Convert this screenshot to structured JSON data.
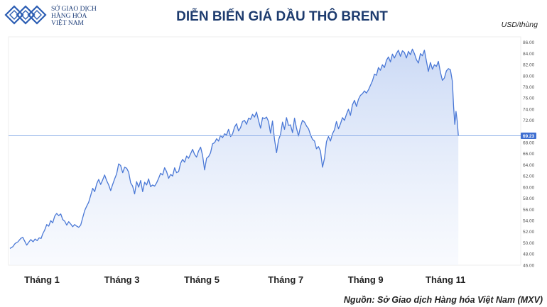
{
  "logo": {
    "line1": "SỞ GIAO DỊCH",
    "line2": "HÀNG HÓA",
    "line3": "VIỆT NAM"
  },
  "header": {
    "title": "DIỄN BIẾN GIÁ DẦU THÔ BRENT",
    "unit": "USD/thùng"
  },
  "source": "Nguồn: Sở Giao dịch Hàng hóa Việt Nam (MXV)",
  "colors": {
    "line": "#4a78d6",
    "fill_top": "#c9d8f5",
    "fill_bottom": "#f4f7fd",
    "title": "#1d3b6e",
    "last_label_bg": "#3f6fd1",
    "last_line": "#8fb0e8"
  },
  "chart_data": {
    "type": "area",
    "title": "DIỄN BIẾN GIÁ DẦU THÔ BRENT",
    "ylabel": "USD/thùng",
    "ylim": [
      46,
      87
    ],
    "grid": false,
    "yticks": [
      46,
      48,
      50,
      52,
      54,
      56,
      58,
      60,
      62,
      64,
      66,
      68,
      70,
      72,
      74,
      76,
      78,
      80,
      82,
      84,
      86
    ],
    "ytick_labels": [
      "46.00",
      "48.00",
      "50.00",
      "52.00",
      "54.00",
      "56.00",
      "58.00",
      "60.00",
      "62.00",
      "64.00",
      "66.00",
      "68.00",
      "70.00",
      "72.00",
      "74.00",
      "76.00",
      "78.00",
      "80.00",
      "82.00",
      "84.00",
      "86.00"
    ],
    "x_range": [
      0,
      12.3
    ],
    "xticks": [
      {
        "x": 0.8,
        "label": "Tháng 1"
      },
      {
        "x": 2.8,
        "label": "Tháng 3"
      },
      {
        "x": 4.8,
        "label": "Tháng 5"
      },
      {
        "x": 6.9,
        "label": "Tháng 7"
      },
      {
        "x": 8.9,
        "label": "Tháng 9"
      },
      {
        "x": 10.9,
        "label": "Tháng 11"
      }
    ],
    "last_value": 69.23,
    "last_value_label": "69.23",
    "series": [
      {
        "values": [
          [
            0.0,
            49.0
          ],
          [
            0.07,
            49.3
          ],
          [
            0.13,
            49.9
          ],
          [
            0.2,
            50.2
          ],
          [
            0.27,
            50.8
          ],
          [
            0.32,
            51.0
          ],
          [
            0.37,
            50.3
          ],
          [
            0.42,
            49.6
          ],
          [
            0.47,
            50.1
          ],
          [
            0.52,
            50.6
          ],
          [
            0.58,
            50.2
          ],
          [
            0.63,
            50.7
          ],
          [
            0.68,
            50.4
          ],
          [
            0.73,
            50.9
          ],
          [
            0.78,
            50.8
          ],
          [
            0.82,
            51.6
          ],
          [
            0.87,
            52.3
          ],
          [
            0.92,
            53.3
          ],
          [
            0.97,
            53.0
          ],
          [
            1.02,
            54.0
          ],
          [
            1.07,
            53.6
          ],
          [
            1.12,
            54.8
          ],
          [
            1.17,
            55.3
          ],
          [
            1.22,
            54.9
          ],
          [
            1.27,
            55.2
          ],
          [
            1.32,
            54.2
          ],
          [
            1.37,
            53.9
          ],
          [
            1.42,
            53.2
          ],
          [
            1.47,
            53.8
          ],
          [
            1.52,
            53.4
          ],
          [
            1.57,
            52.9
          ],
          [
            1.62,
            53.3
          ],
          [
            1.67,
            53.0
          ],
          [
            1.72,
            52.8
          ],
          [
            1.77,
            53.2
          ],
          [
            1.82,
            54.5
          ],
          [
            1.87,
            55.8
          ],
          [
            1.92,
            56.6
          ],
          [
            1.97,
            57.3
          ],
          [
            2.02,
            58.5
          ],
          [
            2.07,
            59.8
          ],
          [
            2.12,
            59.2
          ],
          [
            2.17,
            60.6
          ],
          [
            2.22,
            61.4
          ],
          [
            2.27,
            60.5
          ],
          [
            2.32,
            61.3
          ],
          [
            2.37,
            62.2
          ],
          [
            2.42,
            61.2
          ],
          [
            2.47,
            60.4
          ],
          [
            2.52,
            59.4
          ],
          [
            2.57,
            60.5
          ],
          [
            2.62,
            61.5
          ],
          [
            2.67,
            62.4
          ],
          [
            2.72,
            64.2
          ],
          [
            2.77,
            63.9
          ],
          [
            2.82,
            62.6
          ],
          [
            2.87,
            63.6
          ],
          [
            2.92,
            63.4
          ],
          [
            2.97,
            62.7
          ],
          [
            3.02,
            60.8
          ],
          [
            3.07,
            60.2
          ],
          [
            3.12,
            58.8
          ],
          [
            3.17,
            61.0
          ],
          [
            3.22,
            60.0
          ],
          [
            3.27,
            61.2
          ],
          [
            3.32,
            59.2
          ],
          [
            3.37,
            60.9
          ],
          [
            3.42,
            60.4
          ],
          [
            3.47,
            61.5
          ],
          [
            3.52,
            60.1
          ],
          [
            3.57,
            60.4
          ],
          [
            3.62,
            60.2
          ],
          [
            3.67,
            60.8
          ],
          [
            3.72,
            61.6
          ],
          [
            3.77,
            62.5
          ],
          [
            3.82,
            62.2
          ],
          [
            3.87,
            63.5
          ],
          [
            3.92,
            62.8
          ],
          [
            3.97,
            61.6
          ],
          [
            4.02,
            62.3
          ],
          [
            4.07,
            62.0
          ],
          [
            4.12,
            63.5
          ],
          [
            4.17,
            62.6
          ],
          [
            4.22,
            62.8
          ],
          [
            4.27,
            64.3
          ],
          [
            4.32,
            65.0
          ],
          [
            4.37,
            64.5
          ],
          [
            4.42,
            65.6
          ],
          [
            4.47,
            65.2
          ],
          [
            4.52,
            66.0
          ],
          [
            4.57,
            66.8
          ],
          [
            4.62,
            65.9
          ],
          [
            4.67,
            65.4
          ],
          [
            4.72,
            66.5
          ],
          [
            4.77,
            67.2
          ],
          [
            4.82,
            65.7
          ],
          [
            4.87,
            63.1
          ],
          [
            4.92,
            65.2
          ],
          [
            4.97,
            65.5
          ],
          [
            5.02,
            66.2
          ],
          [
            5.07,
            67.8
          ],
          [
            5.12,
            68.0
          ],
          [
            5.17,
            68.7
          ],
          [
            5.22,
            68.3
          ],
          [
            5.27,
            69.3
          ],
          [
            5.32,
            68.9
          ],
          [
            5.37,
            69.6
          ],
          [
            5.42,
            69.4
          ],
          [
            5.47,
            70.4
          ],
          [
            5.52,
            69.1
          ],
          [
            5.57,
            69.6
          ],
          [
            5.62,
            70.8
          ],
          [
            5.67,
            71.4
          ],
          [
            5.72,
            70.1
          ],
          [
            5.77,
            70.7
          ],
          [
            5.82,
            71.8
          ],
          [
            5.87,
            72.0
          ],
          [
            5.92,
            71.3
          ],
          [
            5.97,
            72.4
          ],
          [
            6.02,
            72.2
          ],
          [
            6.07,
            73.1
          ],
          [
            6.12,
            72.6
          ],
          [
            6.17,
            73.5
          ],
          [
            6.22,
            72.0
          ],
          [
            6.27,
            70.6
          ],
          [
            6.32,
            72.5
          ],
          [
            6.37,
            72.3
          ],
          [
            6.42,
            72.6
          ],
          [
            6.47,
            71.8
          ],
          [
            6.52,
            69.7
          ],
          [
            6.57,
            71.9
          ],
          [
            6.62,
            68.6
          ],
          [
            6.67,
            66.2
          ],
          [
            6.72,
            68.5
          ],
          [
            6.77,
            69.5
          ],
          [
            6.82,
            71.7
          ],
          [
            6.87,
            70.4
          ],
          [
            6.92,
            72.5
          ],
          [
            6.97,
            71.1
          ],
          [
            7.02,
            71.2
          ],
          [
            7.07,
            69.8
          ],
          [
            7.12,
            72.4
          ],
          [
            7.17,
            70.6
          ],
          [
            7.22,
            69.2
          ],
          [
            7.27,
            70.9
          ],
          [
            7.32,
            72.0
          ],
          [
            7.37,
            71.7
          ],
          [
            7.42,
            71.0
          ],
          [
            7.47,
            70.5
          ],
          [
            7.52,
            69.4
          ],
          [
            7.57,
            68.6
          ],
          [
            7.62,
            68.3
          ],
          [
            7.67,
            66.9
          ],
          [
            7.72,
            67.3
          ],
          [
            7.77,
            66.5
          ],
          [
            7.82,
            63.6
          ],
          [
            7.87,
            65.2
          ],
          [
            7.92,
            68.2
          ],
          [
            7.97,
            69.1
          ],
          [
            8.02,
            68.3
          ],
          [
            8.07,
            69.6
          ],
          [
            8.12,
            70.3
          ],
          [
            8.17,
            71.8
          ],
          [
            8.22,
            70.5
          ],
          [
            8.27,
            71.4
          ],
          [
            8.32,
            72.5
          ],
          [
            8.37,
            72.0
          ],
          [
            8.42,
            73.1
          ],
          [
            8.47,
            74.0
          ],
          [
            8.52,
            72.9
          ],
          [
            8.57,
            74.8
          ],
          [
            8.62,
            75.6
          ],
          [
            8.67,
            74.5
          ],
          [
            8.72,
            75.8
          ],
          [
            8.77,
            76.5
          ],
          [
            8.82,
            76.8
          ],
          [
            8.87,
            77.3
          ],
          [
            8.92,
            76.9
          ],
          [
            8.97,
            77.5
          ],
          [
            9.02,
            78.3
          ],
          [
            9.07,
            79.1
          ],
          [
            9.12,
            80.3
          ],
          [
            9.17,
            80.1
          ],
          [
            9.22,
            81.5
          ],
          [
            9.27,
            81.0
          ],
          [
            9.32,
            82.0
          ],
          [
            9.37,
            81.5
          ],
          [
            9.42,
            82.8
          ],
          [
            9.47,
            83.4
          ],
          [
            9.52,
            82.5
          ],
          [
            9.57,
            83.9
          ],
          [
            9.62,
            83.2
          ],
          [
            9.67,
            84.0
          ],
          [
            9.72,
            84.6
          ],
          [
            9.77,
            83.5
          ],
          [
            9.82,
            84.5
          ],
          [
            9.87,
            84.2
          ],
          [
            9.92,
            83.2
          ],
          [
            9.97,
            84.4
          ],
          [
            10.02,
            83.8
          ],
          [
            10.07,
            84.8
          ],
          [
            10.12,
            84.0
          ],
          [
            10.17,
            82.9
          ],
          [
            10.22,
            82.3
          ],
          [
            10.27,
            84.0
          ],
          [
            10.32,
            83.6
          ],
          [
            10.37,
            84.6
          ],
          [
            10.42,
            82.7
          ],
          [
            10.47,
            80.8
          ],
          [
            10.52,
            82.4
          ],
          [
            10.57,
            81.2
          ],
          [
            10.62,
            82.0
          ],
          [
            10.67,
            81.7
          ],
          [
            10.72,
            82.6
          ],
          [
            10.77,
            80.7
          ],
          [
            10.82,
            79.2
          ],
          [
            10.87,
            79.6
          ],
          [
            10.92,
            80.9
          ],
          [
            10.97,
            81.3
          ],
          [
            11.02,
            81.1
          ],
          [
            11.07,
            79.0
          ],
          [
            11.1,
            74.5
          ],
          [
            11.13,
            71.3
          ],
          [
            11.16,
            73.6
          ],
          [
            11.19,
            71.9
          ],
          [
            11.22,
            69.23
          ]
        ]
      }
    ]
  }
}
